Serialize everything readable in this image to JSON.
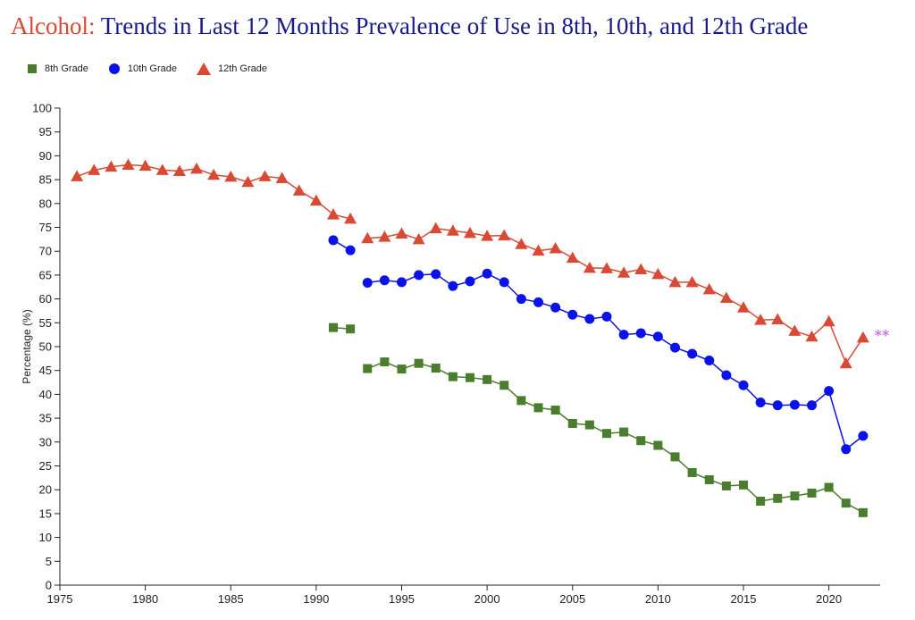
{
  "title": {
    "prefix": "Alcohol:",
    "main": "Trends in Last 12 Months Prevalence of Use in 8th, 10th, and 12th Grade"
  },
  "colors": {
    "grade8": "#4a7d2e",
    "grade10": "#0a12e8",
    "grade12": "#d94a34",
    "note": "#c77be0"
  },
  "chart_data": {
    "type": "line",
    "title": "Alcohol: Trends in Last 12 Months Prevalence of Use in 8th, 10th, and 12th Grade",
    "xlabel": "",
    "ylabel": "Percentage (%)",
    "xlim": [
      1975,
      2023
    ],
    "ylim": [
      0,
      100
    ],
    "x_ticks": [
      1975,
      1980,
      1985,
      1990,
      1995,
      2000,
      2005,
      2010,
      2015,
      2020
    ],
    "y_ticks": [
      0,
      5,
      10,
      15,
      20,
      25,
      30,
      35,
      40,
      45,
      50,
      55,
      60,
      65,
      70,
      75,
      80,
      85,
      90,
      95,
      100
    ],
    "legend_position": "top-left",
    "grid": false,
    "annotation": "**",
    "annotation_point": [
      2023,
      52.5
    ],
    "series": [
      {
        "name": "8th Grade",
        "marker": "square",
        "color": "#4a7d2e",
        "segments": [
          {
            "x": [
              1991,
              1992
            ],
            "y": [
              54.0,
              53.7
            ]
          },
          {
            "x": [
              1993,
              1994,
              1995,
              1996,
              1997,
              1998,
              1999,
              2000,
              2001,
              2002,
              2003,
              2004,
              2005,
              2006,
              2007,
              2008,
              2009,
              2010,
              2011,
              2012,
              2013,
              2014,
              2015,
              2016,
              2017,
              2018,
              2019,
              2020,
              2021,
              2022
            ],
            "y": [
              45.4,
              46.8,
              45.3,
              46.5,
              45.5,
              43.7,
              43.5,
              43.1,
              41.9,
              38.7,
              37.2,
              36.7,
              33.9,
              33.6,
              31.8,
              32.1,
              30.3,
              29.3,
              26.9,
              23.6,
              22.1,
              20.8,
              21.0,
              17.6,
              18.2,
              18.7,
              19.3,
              20.5,
              17.2,
              15.2
            ]
          }
        ]
      },
      {
        "name": "10th Grade",
        "marker": "circle",
        "color": "#0a12e8",
        "segments": [
          {
            "x": [
              1991,
              1992
            ],
            "y": [
              72.3,
              70.2
            ]
          },
          {
            "x": [
              1993,
              1994,
              1995,
              1996,
              1997,
              1998,
              1999,
              2000,
              2001,
              2002,
              2003,
              2004,
              2005,
              2006,
              2007,
              2008,
              2009,
              2010,
              2011,
              2012,
              2013,
              2014,
              2015,
              2016,
              2017,
              2018,
              2019,
              2020,
              2021,
              2022
            ],
            "y": [
              63.4,
              63.9,
              63.5,
              65.0,
              65.2,
              62.7,
              63.7,
              65.3,
              63.5,
              60.0,
              59.3,
              58.2,
              56.7,
              55.8,
              56.3,
              52.5,
              52.8,
              52.1,
              49.8,
              48.5,
              47.1,
              44.0,
              41.9,
              38.3,
              37.7,
              37.8,
              37.7,
              40.7,
              28.5,
              31.3
            ]
          }
        ]
      },
      {
        "name": "12th Grade",
        "marker": "triangle",
        "color": "#d94a34",
        "segments": [
          {
            "x": [
              1976,
              1977,
              1978,
              1979,
              1980,
              1981,
              1982,
              1983,
              1984,
              1985,
              1986,
              1987,
              1988,
              1989,
              1990,
              1991,
              1992
            ],
            "y": [
              85.7,
              87.0,
              87.7,
              88.1,
              87.9,
              87.0,
              86.8,
              87.3,
              86.0,
              85.6,
              84.5,
              85.7,
              85.3,
              82.7,
              80.6,
              77.7,
              76.8
            ]
          },
          {
            "x": [
              1993,
              1994,
              1995,
              1996,
              1997,
              1998,
              1999,
              2000,
              2001,
              2002,
              2003,
              2004,
              2005,
              2006,
              2007,
              2008,
              2009,
              2010,
              2011,
              2012,
              2013,
              2014,
              2015,
              2016,
              2017,
              2018,
              2019,
              2020,
              2021,
              2022
            ],
            "y": [
              72.7,
              73.0,
              73.7,
              72.5,
              74.8,
              74.3,
              73.8,
              73.2,
              73.3,
              71.5,
              70.1,
              70.6,
              68.6,
              66.5,
              66.4,
              65.5,
              66.2,
              65.2,
              63.5,
              63.5,
              62.0,
              60.2,
              58.2,
              55.6,
              55.7,
              53.3,
              52.1,
              55.3,
              46.5,
              51.9
            ]
          }
        ]
      }
    ]
  }
}
